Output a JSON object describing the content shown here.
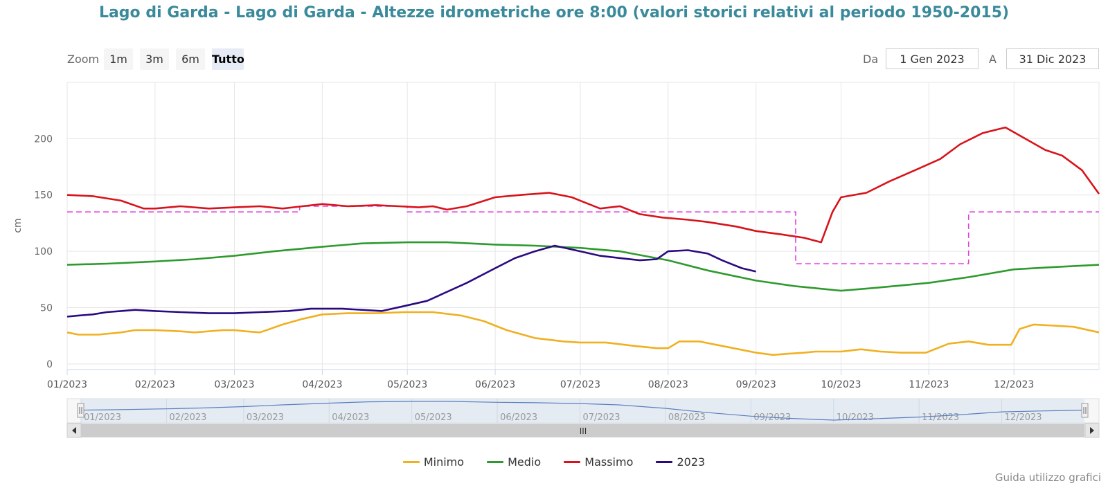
{
  "title": "Lago di Garda - Lago di Garda - Altezze idrometriche ore 8:00 (valori storici relativi al periodo 1950-2015)",
  "zoom": {
    "label": "Zoom",
    "buttons": [
      {
        "label": "1m",
        "active": false
      },
      {
        "label": "3m",
        "active": false
      },
      {
        "label": "6m",
        "active": false
      },
      {
        "label": "Tutto",
        "active": true
      }
    ]
  },
  "range": {
    "from_label": "Da",
    "from_value": "1 Gen 2023",
    "to_label": "A",
    "to_value": "31 Dic 2023"
  },
  "footer_link": "Guida utilizzo grafici",
  "navigator_handle": "III",
  "colors": {
    "minimo": "#f0b020",
    "medio": "#2e9a2e",
    "massimo": "#d8131a",
    "y2023": "#2b0a80",
    "threshold": "#e040e0"
  },
  "chart_data": {
    "type": "line",
    "title": "Lago di Garda - Lago di Garda - Altezze idrometriche ore 8:00 (valori storici relativi al periodo 1950-2015)",
    "ylabel": "cm",
    "xlabel": "",
    "xlim": [
      "2023-01-01",
      "2023-12-31"
    ],
    "ylim": [
      -5,
      250
    ],
    "yticks": [
      0,
      50,
      100,
      150,
      200
    ],
    "xticks": [
      {
        "date": "2023-01-01",
        "label": "01/2023"
      },
      {
        "date": "2023-02-01",
        "label": "02/2023"
      },
      {
        "date": "2023-03-01",
        "label": "03/2023"
      },
      {
        "date": "2023-04-01",
        "label": "04/2023"
      },
      {
        "date": "2023-05-01",
        "label": "05/2023"
      },
      {
        "date": "2023-06-01",
        "label": "06/2023"
      },
      {
        "date": "2023-07-01",
        "label": "07/2023"
      },
      {
        "date": "2023-08-01",
        "label": "08/2023"
      },
      {
        "date": "2023-09-01",
        "label": "09/2023"
      },
      {
        "date": "2023-10-01",
        "label": "10/2023"
      },
      {
        "date": "2023-11-01",
        "label": "11/2023"
      },
      {
        "date": "2023-12-01",
        "label": "12/2023"
      }
    ],
    "grid": true,
    "legend_position": "bottom-center",
    "series": [
      {
        "name": "Minimo",
        "color": "#f0b020",
        "points": [
          [
            "2023-01-01",
            28
          ],
          [
            "2023-01-05",
            26
          ],
          [
            "2023-01-12",
            26
          ],
          [
            "2023-01-20",
            28
          ],
          [
            "2023-01-25",
            30
          ],
          [
            "2023-02-01",
            30
          ],
          [
            "2023-02-10",
            29
          ],
          [
            "2023-02-15",
            28
          ],
          [
            "2023-02-25",
            30
          ],
          [
            "2023-03-01",
            30
          ],
          [
            "2023-03-05",
            29
          ],
          [
            "2023-03-10",
            28
          ],
          [
            "2023-03-18",
            35
          ],
          [
            "2023-03-25",
            40
          ],
          [
            "2023-04-01",
            44
          ],
          [
            "2023-04-10",
            45
          ],
          [
            "2023-04-20",
            45
          ],
          [
            "2023-04-30",
            46
          ],
          [
            "2023-05-10",
            46
          ],
          [
            "2023-05-20",
            43
          ],
          [
            "2023-05-28",
            38
          ],
          [
            "2023-06-05",
            30
          ],
          [
            "2023-06-15",
            23
          ],
          [
            "2023-06-25",
            20
          ],
          [
            "2023-07-01",
            19
          ],
          [
            "2023-07-10",
            19
          ],
          [
            "2023-07-20",
            16
          ],
          [
            "2023-07-28",
            14
          ],
          [
            "2023-08-01",
            14
          ],
          [
            "2023-08-05",
            20
          ],
          [
            "2023-08-12",
            20
          ],
          [
            "2023-08-20",
            16
          ],
          [
            "2023-08-28",
            12
          ],
          [
            "2023-09-01",
            10
          ],
          [
            "2023-09-07",
            8
          ],
          [
            "2023-09-12",
            9
          ],
          [
            "2023-09-18",
            10
          ],
          [
            "2023-09-22",
            11
          ],
          [
            "2023-10-01",
            11
          ],
          [
            "2023-10-08",
            13
          ],
          [
            "2023-10-15",
            11
          ],
          [
            "2023-10-22",
            10
          ],
          [
            "2023-10-31",
            10
          ],
          [
            "2023-11-08",
            18
          ],
          [
            "2023-11-15",
            20
          ],
          [
            "2023-11-22",
            17
          ],
          [
            "2023-11-30",
            17
          ],
          [
            "2023-12-03",
            31
          ],
          [
            "2023-12-08",
            35
          ],
          [
            "2023-12-15",
            34
          ],
          [
            "2023-12-22",
            33
          ],
          [
            "2023-12-31",
            28
          ]
        ]
      },
      {
        "name": "Medio",
        "color": "#2e9a2e",
        "points": [
          [
            "2023-01-01",
            88
          ],
          [
            "2023-01-15",
            89
          ],
          [
            "2023-02-01",
            91
          ],
          [
            "2023-02-15",
            93
          ],
          [
            "2023-03-01",
            96
          ],
          [
            "2023-03-15",
            100
          ],
          [
            "2023-04-01",
            104
          ],
          [
            "2023-04-15",
            107
          ],
          [
            "2023-05-01",
            108
          ],
          [
            "2023-05-15",
            108
          ],
          [
            "2023-06-01",
            106
          ],
          [
            "2023-06-15",
            105
          ],
          [
            "2023-07-01",
            103
          ],
          [
            "2023-07-15",
            100
          ],
          [
            "2023-08-01",
            92
          ],
          [
            "2023-08-15",
            83
          ],
          [
            "2023-09-01",
            74
          ],
          [
            "2023-09-15",
            69
          ],
          [
            "2023-10-01",
            65
          ],
          [
            "2023-10-15",
            68
          ],
          [
            "2023-11-01",
            72
          ],
          [
            "2023-11-15",
            77
          ],
          [
            "2023-12-01",
            84
          ],
          [
            "2023-12-15",
            86
          ],
          [
            "2023-12-31",
            88
          ]
        ]
      },
      {
        "name": "Massimo",
        "color": "#d8131a",
        "points": [
          [
            "2023-01-01",
            150
          ],
          [
            "2023-01-10",
            149
          ],
          [
            "2023-01-20",
            145
          ],
          [
            "2023-01-28",
            138
          ],
          [
            "2023-02-01",
            138
          ],
          [
            "2023-02-10",
            140
          ],
          [
            "2023-02-20",
            138
          ],
          [
            "2023-03-01",
            139
          ],
          [
            "2023-03-10",
            140
          ],
          [
            "2023-03-18",
            138
          ],
          [
            "2023-03-25",
            140
          ],
          [
            "2023-04-01",
            142
          ],
          [
            "2023-04-10",
            140
          ],
          [
            "2023-04-20",
            141
          ],
          [
            "2023-04-28",
            140
          ],
          [
            "2023-05-05",
            139
          ],
          [
            "2023-05-10",
            140
          ],
          [
            "2023-05-15",
            137
          ],
          [
            "2023-05-22",
            140
          ],
          [
            "2023-06-01",
            148
          ],
          [
            "2023-06-10",
            150
          ],
          [
            "2023-06-20",
            152
          ],
          [
            "2023-06-28",
            148
          ],
          [
            "2023-07-01",
            145
          ],
          [
            "2023-07-08",
            138
          ],
          [
            "2023-07-15",
            140
          ],
          [
            "2023-07-22",
            133
          ],
          [
            "2023-07-30",
            130
          ],
          [
            "2023-08-08",
            128
          ],
          [
            "2023-08-15",
            126
          ],
          [
            "2023-08-25",
            122
          ],
          [
            "2023-09-01",
            118
          ],
          [
            "2023-09-10",
            115
          ],
          [
            "2023-09-18",
            112
          ],
          [
            "2023-09-24",
            108
          ],
          [
            "2023-09-28",
            135
          ],
          [
            "2023-10-01",
            148
          ],
          [
            "2023-10-10",
            152
          ],
          [
            "2023-10-18",
            162
          ],
          [
            "2023-10-28",
            173
          ],
          [
            "2023-11-05",
            182
          ],
          [
            "2023-11-12",
            195
          ],
          [
            "2023-11-20",
            205
          ],
          [
            "2023-11-28",
            210
          ],
          [
            "2023-12-05",
            200
          ],
          [
            "2023-12-12",
            190
          ],
          [
            "2023-12-18",
            185
          ],
          [
            "2023-12-25",
            172
          ],
          [
            "2023-12-31",
            151
          ]
        ]
      },
      {
        "name": "2023",
        "color": "#2b0a80",
        "points": [
          [
            "2023-01-01",
            42
          ],
          [
            "2023-01-05",
            43
          ],
          [
            "2023-01-10",
            44
          ],
          [
            "2023-01-15",
            46
          ],
          [
            "2023-01-20",
            47
          ],
          [
            "2023-01-25",
            48
          ],
          [
            "2023-02-01",
            47
          ],
          [
            "2023-02-10",
            46
          ],
          [
            "2023-02-20",
            45
          ],
          [
            "2023-03-01",
            45
          ],
          [
            "2023-03-10",
            46
          ],
          [
            "2023-03-20",
            47
          ],
          [
            "2023-03-28",
            49
          ],
          [
            "2023-04-01",
            49
          ],
          [
            "2023-04-08",
            49
          ],
          [
            "2023-04-15",
            48
          ],
          [
            "2023-04-22",
            47
          ],
          [
            "2023-05-01",
            52
          ],
          [
            "2023-05-08",
            56
          ],
          [
            "2023-05-15",
            64
          ],
          [
            "2023-05-22",
            72
          ],
          [
            "2023-06-01",
            85
          ],
          [
            "2023-06-08",
            94
          ],
          [
            "2023-06-15",
            100
          ],
          [
            "2023-06-22",
            105
          ],
          [
            "2023-07-01",
            100
          ],
          [
            "2023-07-08",
            96
          ],
          [
            "2023-07-15",
            94
          ],
          [
            "2023-07-22",
            92
          ],
          [
            "2023-07-28",
            93
          ],
          [
            "2023-08-01",
            100
          ],
          [
            "2023-08-08",
            101
          ],
          [
            "2023-08-15",
            98
          ],
          [
            "2023-08-20",
            92
          ],
          [
            "2023-08-27",
            85
          ],
          [
            "2023-09-01",
            82
          ]
        ]
      }
    ],
    "threshold": {
      "segments": [
        [
          "2023-01-01",
          135
        ],
        [
          "2023-03-24",
          135
        ],
        [
          "2023-03-24",
          140
        ],
        [
          "2023-05-01",
          140
        ],
        [
          "2023-05-01",
          135
        ],
        [
          "2023-09-15",
          135
        ],
        [
          "2023-09-15",
          89
        ],
        [
          "2023-11-15",
          89
        ],
        [
          "2023-11-15",
          135
        ],
        [
          "2023-12-31",
          135
        ]
      ]
    }
  }
}
